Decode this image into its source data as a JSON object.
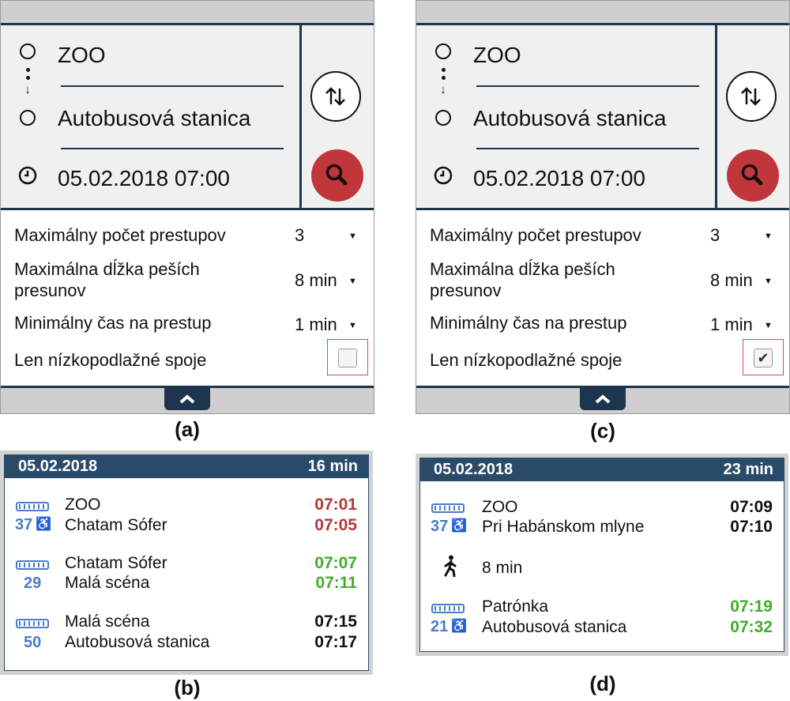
{
  "panel_a": {
    "from": "ZOO",
    "to": "Autobusová stanica",
    "datetime": "05.02.2018 07:00",
    "options": [
      {
        "label": "Maximálny počet prestupov",
        "value": "3"
      },
      {
        "label": "Maximálna dĺžka peších presunov",
        "value": "8 min"
      },
      {
        "label": "Minimálny čas na prestup",
        "value": "1 min"
      }
    ],
    "checkbox_label": "Len nízkopodlažné spoje",
    "checkbox_checked": false,
    "caption": "(a)"
  },
  "panel_c": {
    "from": "ZOO",
    "to": "Autobusová stanica",
    "datetime": "05.02.2018 07:00",
    "options": [
      {
        "label": "Maximálny počet prestupov",
        "value": "3"
      },
      {
        "label": "Maximálna dĺžka peších presunov",
        "value": "8 min"
      },
      {
        "label": "Minimálny čas na prestup",
        "value": "1 min"
      }
    ],
    "checkbox_label": "Len nízkopodlažné spoje",
    "checkbox_checked": true,
    "caption": "(c)"
  },
  "card_b": {
    "date": "05.02.2018",
    "duration": "16 min",
    "caption": "(b)",
    "legs": [
      {
        "line": "37",
        "wheelchair": true,
        "from": "ZOO",
        "to": "Chatam Sófer",
        "dep": "07:01",
        "arr": "07:05",
        "time_color": "#b23a36"
      },
      {
        "line": "29",
        "wheelchair": false,
        "from": "Chatam Sófer",
        "to": "Malá scéna",
        "dep": "07:07",
        "arr": "07:11",
        "time_color": "#3fae2a"
      },
      {
        "line": "50",
        "wheelchair": false,
        "from": "Malá scéna",
        "to": "Autobusová stanica",
        "dep": "07:15",
        "arr": "07:17",
        "time_color": "#111111"
      }
    ]
  },
  "card_d": {
    "date": "05.02.2018",
    "duration": "23 min",
    "caption": "(d)",
    "legs": [
      {
        "line": "37",
        "wheelchair": true,
        "from": "ZOO",
        "to": "Pri Habánskom mlyne",
        "dep": "07:09",
        "arr": "07:10",
        "time_color": "#111111"
      },
      {
        "line": "21",
        "wheelchair": true,
        "from": "Patrónka",
        "to": "Autobusová stanica",
        "dep": "07:19",
        "arr": "07:32",
        "time_color": "#3fae2a"
      }
    ],
    "walk": "8 min"
  },
  "icons": {
    "stop": "stop-circle-icon",
    "swap": "swap-arrows-icon",
    "search": "magnifier-icon",
    "clock": "clock-icon",
    "bus": "bus-icon",
    "wheelchair": "wheelchair-icon",
    "walk": "pedestrian-icon",
    "collapse": "chevron-up-icon"
  },
  "colors": {
    "navy": "#1e3550",
    "header": "#2a4a6a",
    "search_red": "#c0363a",
    "line_blue": "#4a7cc7"
  }
}
